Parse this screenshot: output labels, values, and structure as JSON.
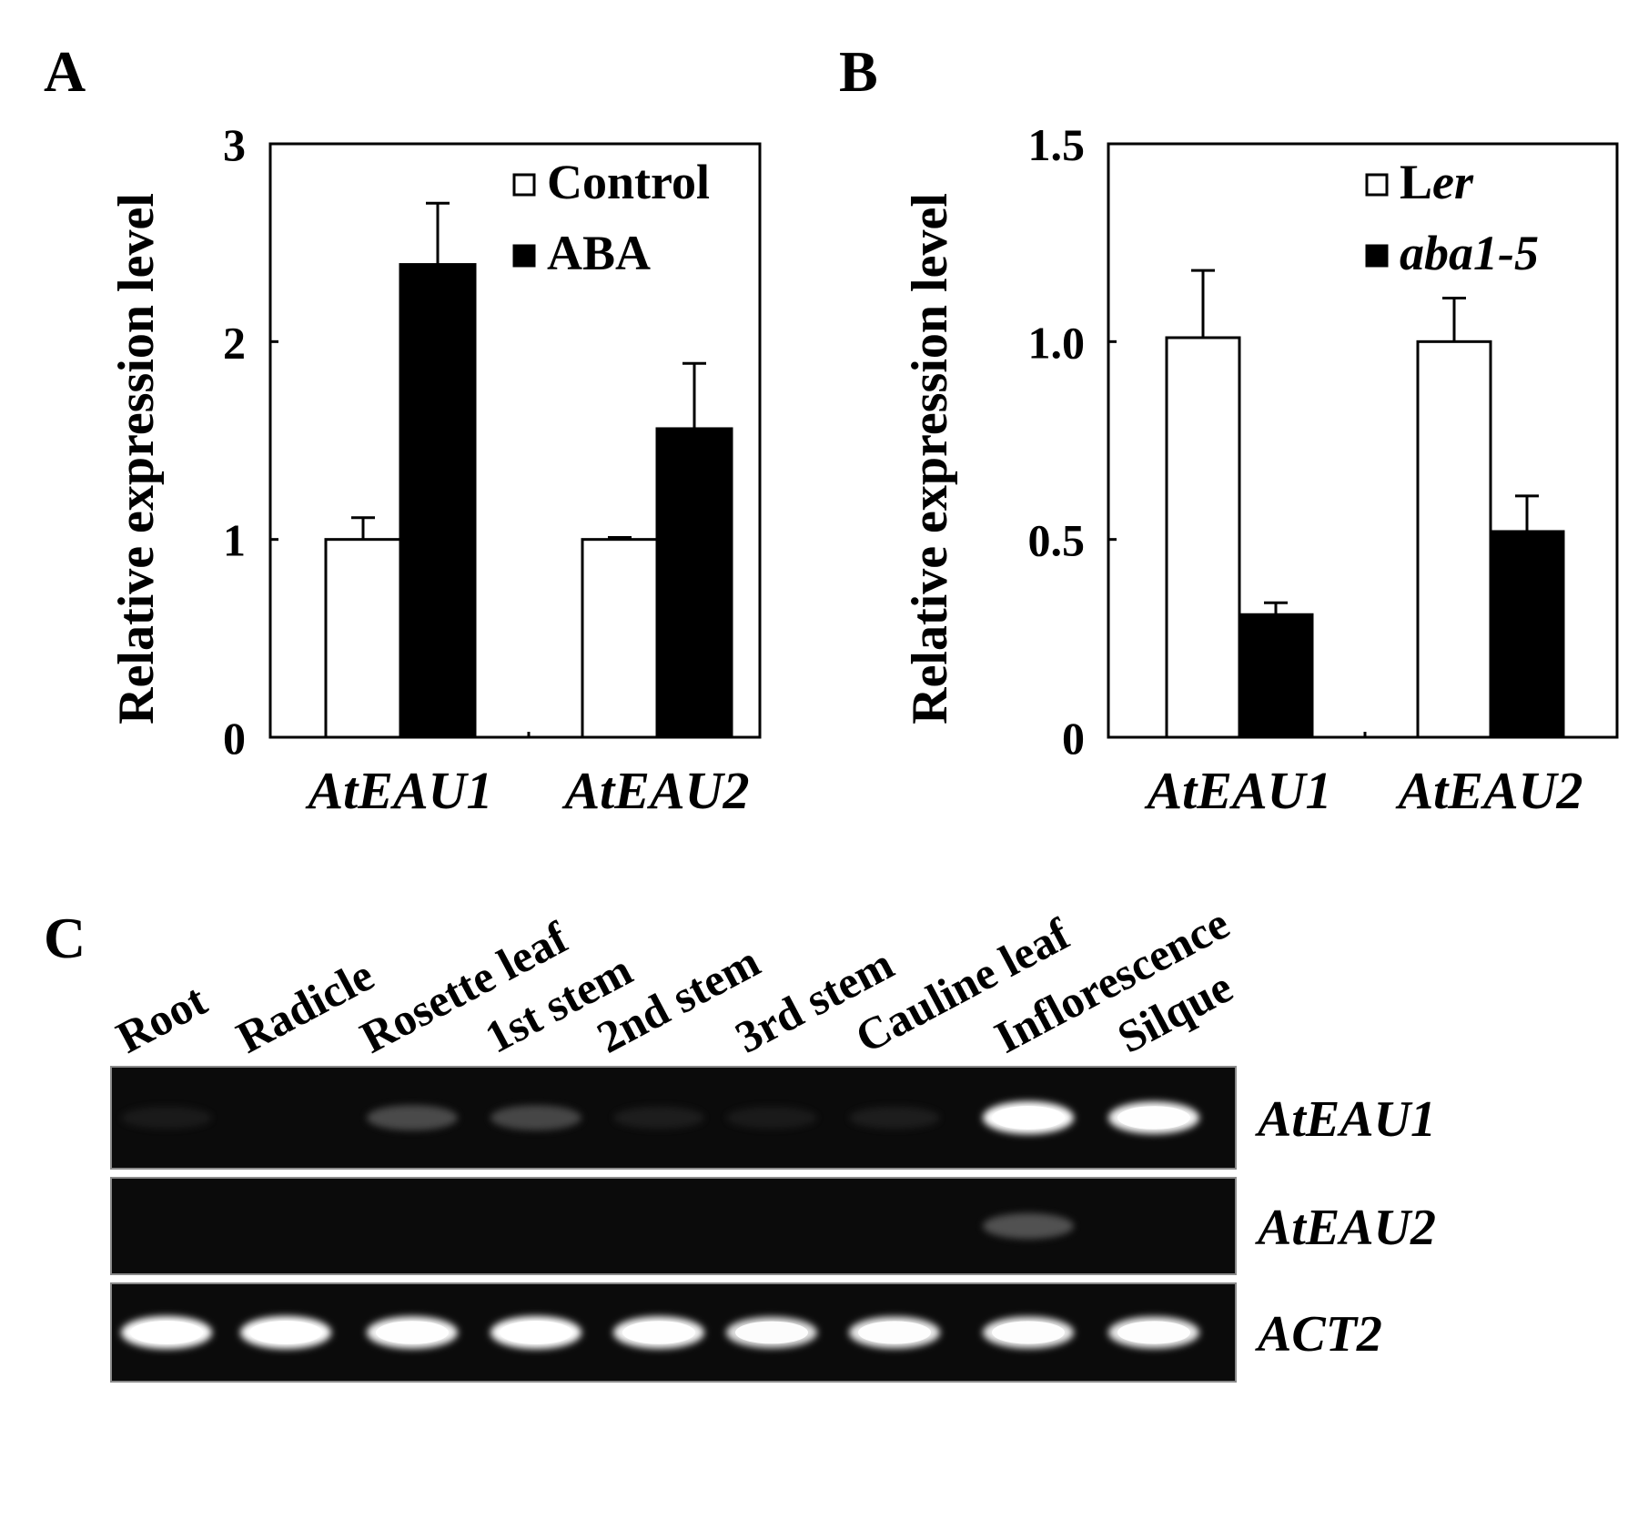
{
  "chart_data": [
    {
      "panel": "A",
      "type": "bar",
      "categories": [
        "AtEAU1",
        "AtEAU2"
      ],
      "series": [
        {
          "name": "Control",
          "values": [
            1.0,
            1.0
          ],
          "errors": [
            0.11,
            0.01
          ],
          "color": "#ffffff"
        },
        {
          "name": "ABA",
          "values": [
            2.39,
            1.56
          ],
          "errors": [
            0.31,
            0.33
          ],
          "color": "#000000"
        }
      ],
      "ylabel": "Relative expression level",
      "ylim": [
        0,
        3
      ],
      "yticks": [
        "0",
        "1",
        "2",
        "3"
      ],
      "legend": "top-right"
    },
    {
      "panel": "B",
      "type": "bar",
      "categories": [
        "AtEAU1",
        "AtEAU2"
      ],
      "series": [
        {
          "name_plain": "L",
          "name_italic": "er",
          "values": [
            1.01,
            1.0
          ],
          "errors": [
            0.17,
            0.11
          ],
          "color": "#ffffff"
        },
        {
          "name_plain": "",
          "name_italic": "aba1-5",
          "values": [
            0.31,
            0.52
          ],
          "errors": [
            0.03,
            0.09
          ],
          "color": "#000000"
        }
      ],
      "ylabel": "Relative expression level",
      "ylim": [
        0,
        1.5
      ],
      "yticks": [
        "0",
        "0.5",
        "1.0",
        "1.5"
      ],
      "legend": "top-right"
    }
  ],
  "gel": {
    "panel": "C",
    "lanes": [
      "Root",
      "Radicle",
      "Rosette leaf",
      "1st stem",
      "2nd stem",
      "3rd stem",
      "Cauline leaf",
      "Inflorescence",
      "Silque"
    ],
    "rows": [
      {
        "label": "AtEAU1",
        "intensities": [
          0.03,
          0.0,
          0.32,
          0.3,
          0.05,
          0.03,
          0.05,
          1.0,
          0.95
        ]
      },
      {
        "label": "AtEAU2",
        "intensities": [
          0.0,
          0.0,
          0.0,
          0.0,
          0.0,
          0.0,
          0.0,
          0.35,
          0.0
        ]
      },
      {
        "label": "ACT2",
        "intensities": [
          1.0,
          1.0,
          0.95,
          1.0,
          0.95,
          0.85,
          0.9,
          0.9,
          0.9
        ]
      }
    ]
  }
}
